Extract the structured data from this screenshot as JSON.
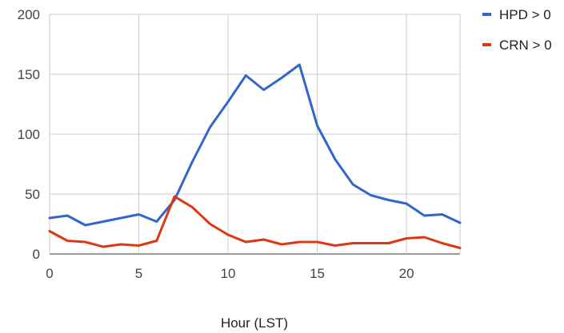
{
  "chart_data": {
    "type": "line",
    "title": "",
    "xlabel": "Hour (LST)",
    "ylabel": "",
    "xlim": [
      0,
      23
    ],
    "ylim": [
      0,
      200
    ],
    "x_ticks": [
      0,
      5,
      10,
      15,
      20
    ],
    "y_ticks": [
      0,
      50,
      100,
      150,
      200
    ],
    "grid": true,
    "legend_position": "right",
    "x": [
      0,
      1,
      2,
      3,
      4,
      5,
      6,
      7,
      8,
      9,
      10,
      11,
      12,
      13,
      14,
      15,
      16,
      17,
      18,
      19,
      20,
      21,
      22,
      23
    ],
    "series": [
      {
        "name": "HPD > 0",
        "color": "#3366cc",
        "values": [
          30,
          32,
          24,
          27,
          30,
          33,
          27,
          45,
          77,
          106,
          127,
          149,
          137,
          147,
          158,
          107,
          79,
          58,
          49,
          45,
          42,
          32,
          33,
          26
        ]
      },
      {
        "name": "CRN > 0",
        "color": "#dc3912",
        "values": [
          19,
          11,
          10,
          6,
          8,
          7,
          11,
          48,
          39,
          25,
          16,
          10,
          12,
          8,
          10,
          10,
          7,
          9,
          9,
          9,
          13,
          14,
          9,
          5
        ]
      }
    ]
  }
}
